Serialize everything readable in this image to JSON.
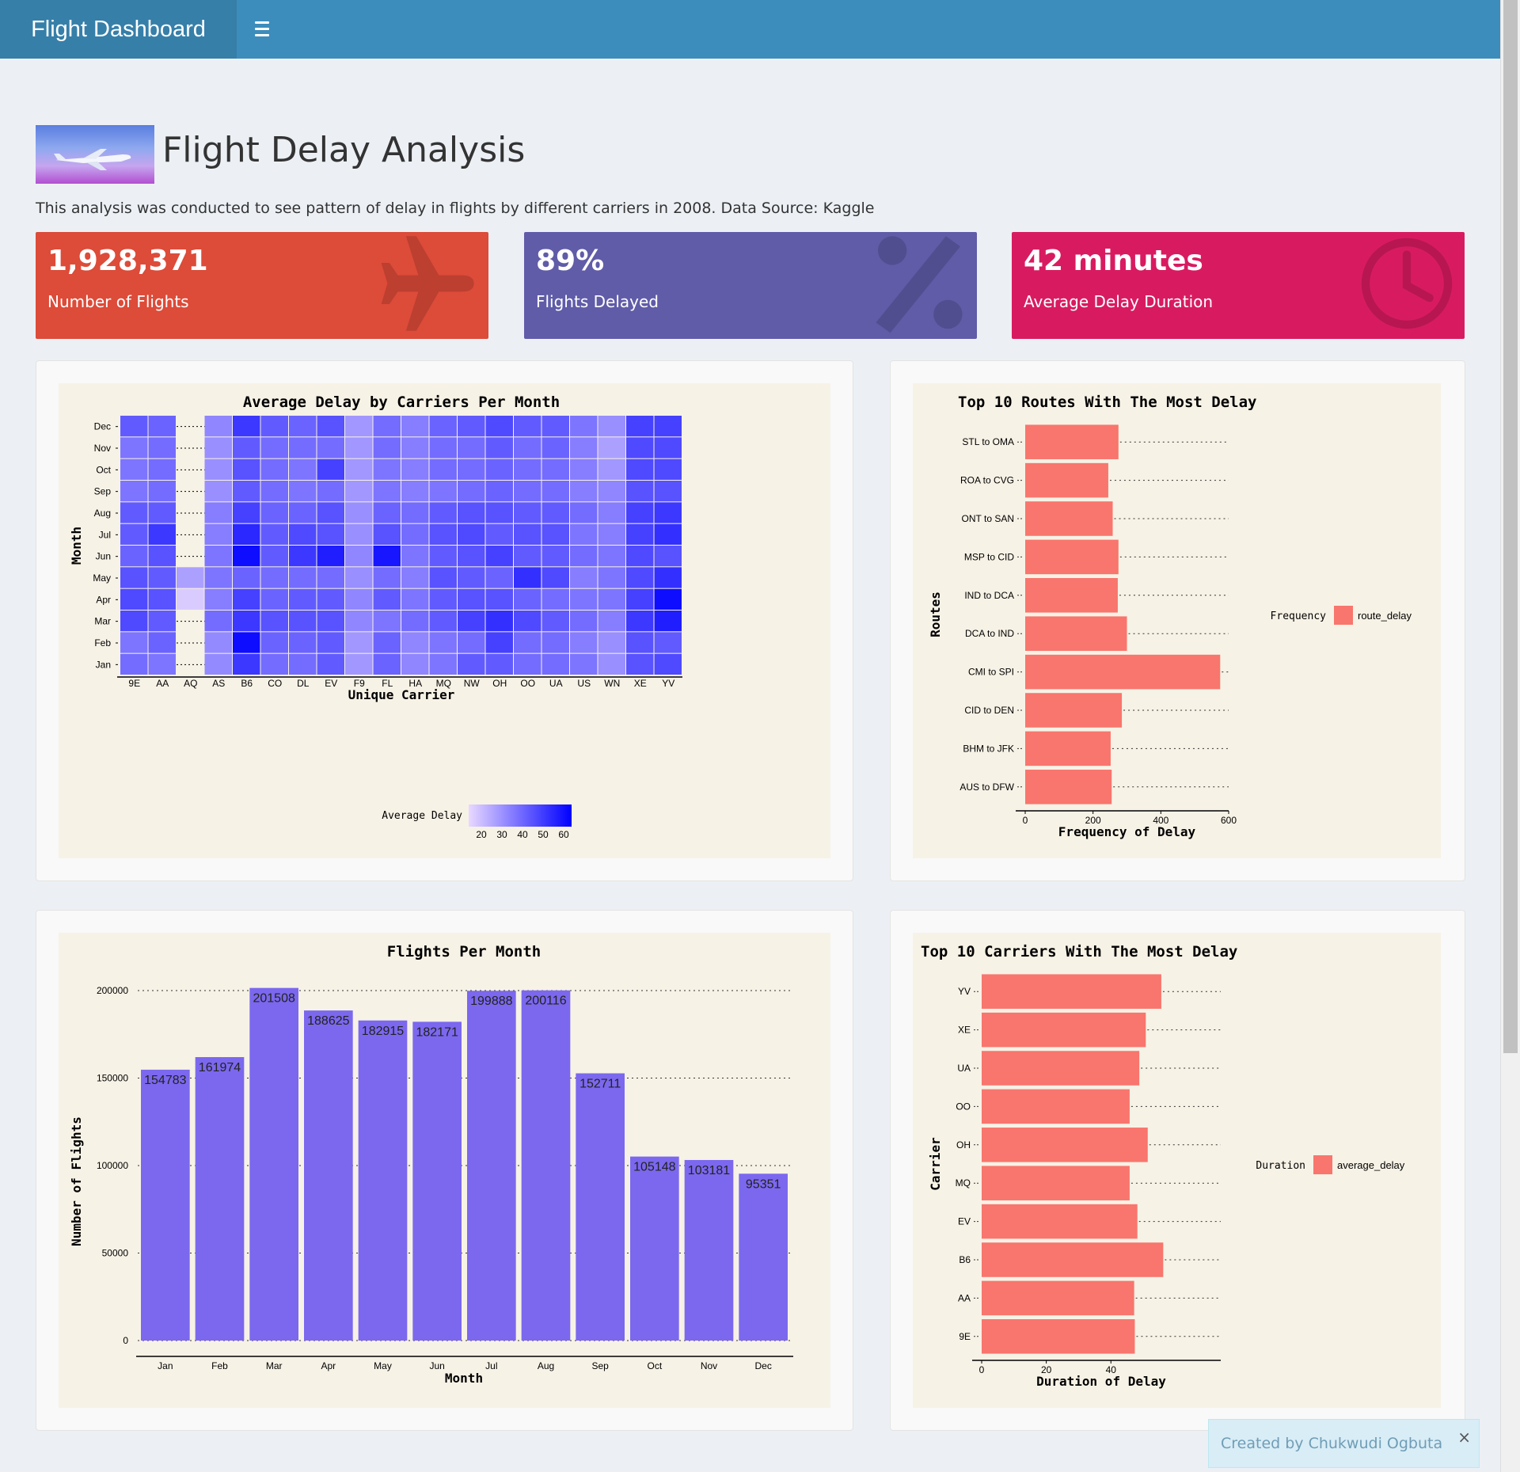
{
  "header": {
    "brand": "Flight Dashboard",
    "menu_icon": "hamburger-icon"
  },
  "page": {
    "title": "Flight Delay Analysis",
    "subtitle": "This analysis was conducted to see pattern of delay in flights by different carriers in 2008. Data Source: Kaggle",
    "image": "airplane-banner"
  },
  "value_boxes": [
    {
      "value": "1,928,371",
      "label": "Number of Flights",
      "color": "#dd4b39",
      "icon": "plane-icon"
    },
    {
      "value": "89%",
      "label": "Flights Delayed",
      "color": "#605ca8",
      "icon": "percent-icon"
    },
    {
      "value": "42 minutes",
      "label": "Average Delay Duration",
      "color": "#d81b60",
      "icon": "clock-icon"
    }
  ],
  "footer": {
    "note": "Created by Chukwudi Ogbuta",
    "close": "×"
  },
  "colors": {
    "header": "#3c8dbc",
    "brand_bg": "#367fa9",
    "plot_bg": "#f7f2e6",
    "route_bar": "#f8766d",
    "monthly_bar": "#7b68ee"
  },
  "chart_data": [
    {
      "id": "heatmap",
      "type": "heatmap",
      "title": "Average Delay by Carriers Per Month",
      "xlabel": "Unique Carrier",
      "ylabel": "Month",
      "x": [
        "9E",
        "AA",
        "AQ",
        "AS",
        "B6",
        "CO",
        "DL",
        "EV",
        "F9",
        "FL",
        "HA",
        "MQ",
        "NW",
        "OH",
        "OO",
        "UA",
        "US",
        "WN",
        "XE",
        "YV"
      ],
      "y": [
        "Jan",
        "Feb",
        "Mar",
        "Apr",
        "May",
        "Jun",
        "Jul",
        "Aug",
        "Sep",
        "Oct",
        "Nov",
        "Dec"
      ],
      "values": [
        [
          40,
          38,
          null,
          33,
          52,
          40,
          40,
          44,
          30,
          42,
          34,
          38,
          44,
          44,
          40,
          40,
          38,
          32,
          46,
          48
        ],
        [
          38,
          42,
          null,
          33,
          62,
          42,
          42,
          44,
          30,
          42,
          34,
          38,
          40,
          50,
          40,
          40,
          36,
          32,
          46,
          44
        ],
        [
          48,
          44,
          null,
          40,
          52,
          46,
          46,
          46,
          34,
          38,
          40,
          44,
          50,
          54,
          48,
          44,
          40,
          36,
          52,
          58
        ],
        [
          48,
          46,
          18,
          36,
          50,
          42,
          44,
          44,
          34,
          44,
          38,
          44,
          46,
          46,
          42,
          40,
          38,
          38,
          50,
          62
        ],
        [
          46,
          44,
          28,
          38,
          42,
          40,
          40,
          40,
          32,
          40,
          36,
          46,
          44,
          42,
          54,
          48,
          36,
          38,
          48,
          54
        ],
        [
          42,
          46,
          null,
          38,
          62,
          44,
          52,
          58,
          34,
          60,
          38,
          44,
          46,
          50,
          44,
          44,
          40,
          38,
          48,
          46
        ],
        [
          44,
          52,
          null,
          36,
          56,
          44,
          48,
          46,
          32,
          46,
          40,
          46,
          48,
          44,
          46,
          46,
          38,
          36,
          50,
          54
        ],
        [
          44,
          44,
          null,
          36,
          50,
          42,
          42,
          46,
          32,
          42,
          40,
          44,
          46,
          46,
          44,
          44,
          40,
          36,
          50,
          52
        ],
        [
          38,
          40,
          null,
          32,
          44,
          40,
          38,
          40,
          30,
          38,
          36,
          38,
          40,
          42,
          40,
          40,
          36,
          34,
          46,
          46
        ],
        [
          38,
          40,
          null,
          32,
          46,
          40,
          38,
          50,
          30,
          38,
          36,
          40,
          40,
          42,
          40,
          40,
          36,
          30,
          48,
          48
        ],
        [
          38,
          40,
          null,
          32,
          44,
          40,
          40,
          40,
          30,
          40,
          36,
          40,
          40,
          44,
          40,
          42,
          36,
          28,
          48,
          48
        ],
        [
          44,
          42,
          null,
          34,
          52,
          44,
          42,
          46,
          30,
          40,
          36,
          42,
          44,
          48,
          44,
          44,
          38,
          32,
          50,
          50
        ]
      ],
      "legend_title": "Average Delay",
      "legend_ticks": [
        20,
        30,
        40,
        50,
        60
      ]
    },
    {
      "id": "routes",
      "type": "bar",
      "orientation": "horizontal",
      "title": "Top 10 Routes With The Most Delay",
      "xlabel": "Frequency of Delay",
      "ylabel": "Routes",
      "categories": [
        "STL to OMA",
        "ROA to CVG",
        "ONT to SAN",
        "MSP to CID",
        "IND to DCA",
        "DCA to IND",
        "CMI to SPI",
        "CID to DEN",
        "BHM to JFK",
        "AUS to DFW"
      ],
      "values": [
        275,
        245,
        258,
        275,
        273,
        300,
        575,
        285,
        252,
        255
      ],
      "xlim": [
        0,
        600
      ],
      "xticks": [
        0,
        200,
        400,
        600
      ],
      "legend_title": "Frequency",
      "legend_label": "route_delay"
    },
    {
      "id": "monthly",
      "type": "bar",
      "title": "Flights Per Month",
      "xlabel": "Month",
      "ylabel": "Number of Flights",
      "categories": [
        "Jan",
        "Feb",
        "Mar",
        "Apr",
        "May",
        "Jun",
        "Jul",
        "Aug",
        "Sep",
        "Oct",
        "Nov",
        "Dec"
      ],
      "values": [
        154783,
        161974,
        201508,
        188625,
        182915,
        182171,
        199888,
        200116,
        152711,
        105148,
        103181,
        95351
      ],
      "ylim": [
        0,
        200000
      ],
      "yticks": [
        0,
        50000,
        100000,
        150000,
        200000
      ]
    },
    {
      "id": "carriers",
      "type": "bar",
      "orientation": "horizontal",
      "title": "Top 10 Carriers With The Most Delay",
      "xlabel": "Duration of Delay",
      "ylabel": "Carrier",
      "categories": [
        "YV",
        "XE",
        "UA",
        "OO",
        "OH",
        "MQ",
        "EV",
        "B6",
        "AA",
        "9E"
      ],
      "values": [
        55.6,
        50.8,
        48.8,
        45.8,
        51.4,
        45.8,
        48.2,
        56.2,
        47.2,
        47.4
      ],
      "xticks": [
        0,
        20,
        40
      ],
      "legend_title": "Duration",
      "legend_label": "average_delay"
    }
  ]
}
